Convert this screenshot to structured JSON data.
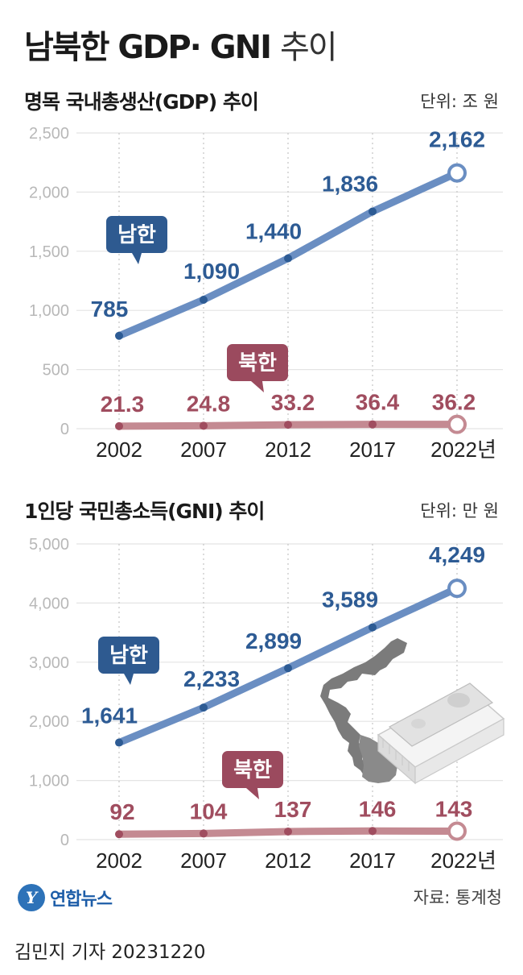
{
  "header": {
    "title_bold": "남북한 GDP· GNI",
    "title_light": "추이"
  },
  "footer": {
    "logo": "연합뉴스",
    "source": "자료: 통계청",
    "reporter": "김민지 기자  20231220"
  },
  "colors": {
    "south": "#6a8ec2",
    "south_label": "#2d5b94",
    "north": "#c48a92",
    "north_label": "#a04d5f",
    "tag_south": "#2e5a90",
    "tag_north": "#9b4a5e",
    "grid": "#e4e4e4",
    "tick": "#b8b8b8"
  },
  "chart_data": [
    {
      "type": "line",
      "title": "명목 국내총생산(GDP) 추이",
      "unit": "단위: 조 원",
      "categories": [
        "2002",
        "2007",
        "2012",
        "2017",
        "2022년"
      ],
      "ylim": [
        0,
        2500
      ],
      "yticks": [
        0,
        500,
        1000,
        1500,
        2000,
        2500
      ],
      "ytick_labels": [
        "0",
        "500",
        "1,000",
        "1,500",
        "2,000",
        "2,500"
      ],
      "series": [
        {
          "name": "남한",
          "values": [
            785,
            1090,
            1440,
            1836,
            2162
          ],
          "labels": [
            "785",
            "1,090",
            "1,440",
            "1,836",
            "2,162"
          ]
        },
        {
          "name": "북한",
          "values": [
            21.3,
            24.8,
            33.2,
            36.4,
            36.2
          ],
          "labels": [
            "21.3",
            "24.8",
            "33.2",
            "36.4",
            "36.2"
          ]
        }
      ]
    },
    {
      "type": "line",
      "title": "1인당 국민총소득(GNI) 추이",
      "unit": "단위: 만 원",
      "categories": [
        "2002",
        "2007",
        "2012",
        "2017",
        "2022년"
      ],
      "ylim": [
        0,
        5000
      ],
      "yticks": [
        0,
        1000,
        2000,
        3000,
        4000,
        5000
      ],
      "ytick_labels": [
        "0",
        "1,000",
        "2,000",
        "3,000",
        "4,000",
        "5,000"
      ],
      "series": [
        {
          "name": "남한",
          "values": [
            1641,
            2233,
            2899,
            3589,
            4249
          ],
          "labels": [
            "1,641",
            "2,233",
            "2,899",
            "3,589",
            "4,249"
          ]
        },
        {
          "name": "북한",
          "values": [
            92,
            104,
            137,
            146,
            143
          ],
          "labels": [
            "92",
            "104",
            "137",
            "146",
            "143"
          ]
        }
      ]
    }
  ]
}
